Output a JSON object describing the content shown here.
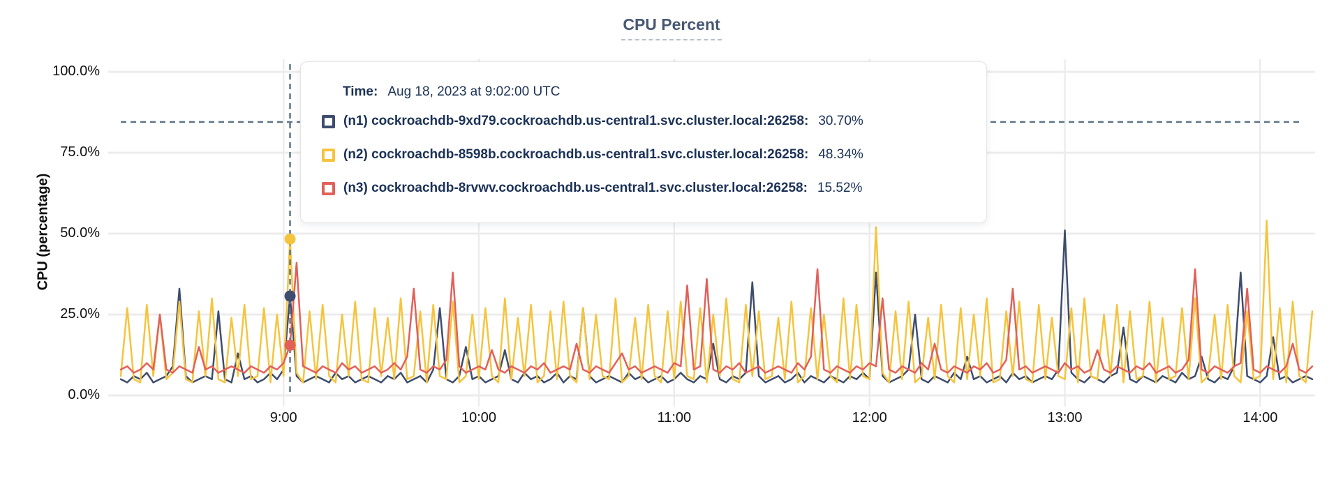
{
  "title": "CPU Percent",
  "colors": {
    "title": "#475872",
    "grid": "#ececec",
    "crosshair": "#5c7589",
    "tooltip_text": "#1b3156",
    "n1": "#3e4d6d",
    "n2": "#f5c43e",
    "n3": "#e2605a"
  },
  "tooltip": {
    "time_label": "Time:",
    "time_value": "Aug 18, 2023 at 9:02:00 UTC",
    "rows": [
      {
        "name": "(n1) cockroachdb-9xd79.cockroachdb.us-central1.svc.cluster.local:26258:",
        "value": "30.70%",
        "color": "#3e4d6d"
      },
      {
        "name": "(n2) cockroachdb-8598b.cockroachdb.us-central1.svc.cluster.local:26258:",
        "value": "48.34%",
        "color": "#f5c43e"
      },
      {
        "name": "(n3) cockroachdb-8rvwv.cockroachdb.us-central1.svc.cluster.local:26258:",
        "value": "15.52%",
        "color": "#e2605a"
      }
    ]
  },
  "chart_data": {
    "type": "line",
    "title": "CPU Percent",
    "xlabel": "",
    "ylabel": "CPU (percentage)",
    "ylim": [
      0,
      100
    ],
    "grid": true,
    "y_ticks": [
      {
        "percent": 0,
        "label": "0.0%"
      },
      {
        "percent": 25,
        "label": "25.0%"
      },
      {
        "percent": 50,
        "label": "50.0%"
      },
      {
        "percent": 75,
        "label": "75.0%"
      },
      {
        "percent": 100,
        "label": "100.0%"
      }
    ],
    "x_ticks": [
      {
        "minutes": 540,
        "label": "9:00"
      },
      {
        "minutes": 600,
        "label": "10:00"
      },
      {
        "minutes": 660,
        "label": "11:00"
      },
      {
        "minutes": 720,
        "label": "12:00"
      },
      {
        "minutes": 780,
        "label": "13:00"
      },
      {
        "minutes": 840,
        "label": "14:00"
      }
    ],
    "x_start_minutes": 490,
    "x_step_minutes": 2,
    "hover": {
      "index": 26,
      "time": "9:02",
      "y_percent": 84.5,
      "values": {
        "n1": 30.7,
        "n2": 48.34,
        "n3": 15.52
      }
    },
    "series": [
      {
        "id": "n1",
        "name": "(n1) cockroachdb-9xd79.cockroachdb.us-central1.svc.cluster.local:26258",
        "color": "#3e4d6d",
        "values": [
          5,
          4,
          6,
          5,
          7,
          4,
          5,
          6,
          9,
          33,
          6,
          4,
          5,
          6,
          5,
          26,
          5,
          4,
          13,
          5,
          6,
          4,
          5,
          7,
          5,
          8,
          30.7,
          6,
          4,
          5,
          6,
          5,
          4,
          7,
          5,
          6,
          4,
          5,
          6,
          5,
          4,
          6,
          5,
          7,
          4,
          5,
          6,
          4,
          8,
          27,
          5,
          4,
          6,
          15,
          5,
          6,
          4,
          5,
          6,
          14,
          5,
          4,
          7,
          5,
          6,
          4,
          5,
          7,
          4,
          6,
          5,
          27,
          6,
          4,
          5,
          6,
          5,
          4,
          7,
          5,
          6,
          4,
          5,
          6,
          4,
          5,
          7,
          5,
          4,
          6,
          5,
          16,
          5,
          4,
          6,
          5,
          7,
          35,
          6,
          4,
          5,
          6,
          4,
          5,
          7,
          4,
          6,
          5,
          4,
          6,
          5,
          4,
          6,
          5,
          7,
          5,
          38,
          6,
          4,
          5,
          6,
          8,
          25,
          5,
          4,
          6,
          5,
          4,
          7,
          5,
          12,
          5,
          6,
          4,
          5,
          6,
          4,
          7,
          5,
          6,
          4,
          5,
          6,
          5,
          8,
          51,
          7,
          5,
          4,
          6,
          5,
          4,
          6,
          7,
          21,
          5,
          4,
          6,
          5,
          4,
          6,
          5,
          4,
          7,
          5,
          6,
          12,
          5,
          4,
          6,
          5,
          9,
          38,
          6,
          5,
          4,
          6,
          18,
          5,
          6,
          4,
          5,
          6,
          5
        ]
      },
      {
        "id": "n2",
        "name": "(n2) cockroachdb-8598b.cockroachdb.us-central1.svc.cluster.local:26258",
        "color": "#f5c43e",
        "values": [
          6,
          27,
          5,
          4,
          28,
          6,
          25,
          5,
          7,
          29,
          5,
          4,
          26,
          6,
          30,
          5,
          4,
          24,
          6,
          28,
          5,
          6,
          27,
          4,
          25,
          6,
          48.34,
          7,
          4,
          26,
          5,
          28,
          6,
          4,
          25,
          6,
          29,
          5,
          4,
          27,
          6,
          24,
          5,
          30,
          5,
          6,
          26,
          4,
          28,
          6,
          5,
          29,
          4,
          6,
          25,
          5,
          27,
          6,
          4,
          30,
          5,
          24,
          6,
          28,
          4,
          6,
          26,
          5,
          29,
          6,
          4,
          27,
          5,
          25,
          6,
          5,
          30,
          4,
          6,
          24,
          5,
          28,
          6,
          4,
          26,
          5,
          29,
          6,
          5,
          27,
          4,
          25,
          6,
          30,
          5,
          4,
          28,
          6,
          26,
          5,
          6,
          24,
          5,
          29,
          4,
          6,
          27,
          5,
          25,
          6,
          4,
          30,
          5,
          28,
          6,
          5,
          52,
          7,
          4,
          26,
          5,
          29,
          4,
          6,
          24,
          5,
          28,
          6,
          4,
          27,
          5,
          25,
          6,
          30,
          4,
          5,
          26,
          6,
          29,
          5,
          4,
          28,
          5,
          24,
          6,
          5,
          27,
          4,
          30,
          6,
          5,
          25,
          6,
          28,
          4,
          26,
          5,
          6,
          29,
          4,
          24,
          5,
          6,
          27,
          5,
          30,
          4,
          6,
          25,
          5,
          28,
          6,
          4,
          26,
          5,
          6,
          54,
          5,
          27,
          4,
          29,
          6,
          4,
          26
        ]
      },
      {
        "id": "n3",
        "name": "(n3) cockroachdb-8rvwv.cockroachdb.us-central1.svc.cluster.local:26258",
        "color": "#e2605a",
        "values": [
          8,
          9,
          7,
          8,
          10,
          8,
          25,
          8,
          7,
          9,
          8,
          7,
          15,
          8,
          9,
          7,
          8,
          9,
          8,
          7,
          9,
          8,
          7,
          9,
          8,
          10,
          15.52,
          41,
          9,
          8,
          7,
          9,
          8,
          7,
          10,
          8,
          9,
          7,
          8,
          9,
          7,
          8,
          10,
          8,
          12,
          33,
          8,
          7,
          9,
          8,
          11,
          38,
          9,
          7,
          8,
          9,
          8,
          14,
          8,
          7,
          9,
          8,
          7,
          9,
          8,
          10,
          7,
          8,
          9,
          8,
          16,
          8,
          7,
          9,
          8,
          7,
          10,
          13,
          8,
          9,
          7,
          8,
          9,
          8,
          7,
          10,
          9,
          34,
          8,
          9,
          36,
          8,
          7,
          9,
          8,
          10,
          7,
          8,
          9,
          7,
          8,
          9,
          8,
          7,
          10,
          8,
          12,
          39,
          8,
          7,
          9,
          8,
          7,
          9,
          8,
          10,
          9,
          30,
          8,
          7,
          9,
          8,
          7,
          10,
          8,
          16,
          8,
          7,
          9,
          8,
          7,
          9,
          8,
          10,
          7,
          8,
          11,
          33,
          8,
          9,
          7,
          8,
          9,
          8,
          7,
          10,
          8,
          9,
          7,
          8,
          14,
          8,
          7,
          9,
          8,
          7,
          9,
          8,
          10,
          7,
          8,
          9,
          7,
          8,
          11,
          39,
          8,
          7,
          9,
          8,
          7,
          9,
          10,
          33,
          8,
          7,
          9,
          8,
          7,
          9,
          16,
          8,
          7,
          9
        ]
      }
    ]
  }
}
